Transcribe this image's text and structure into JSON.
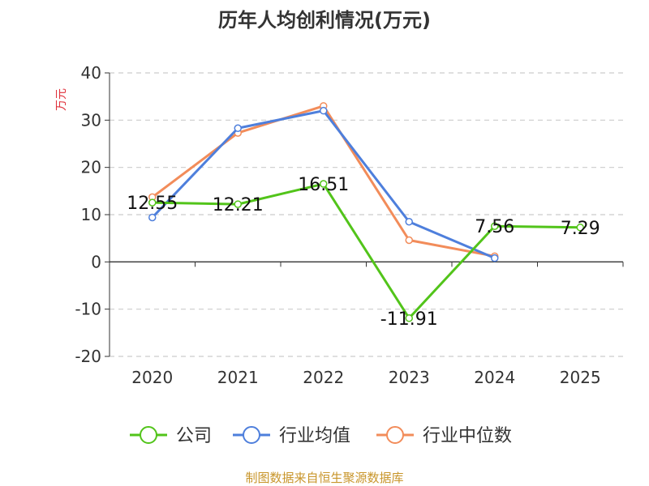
{
  "chart_data": {
    "type": "line",
    "title": "历年人均创利情况(万元)",
    "ylabel": "万元",
    "categories": [
      "2020",
      "2021",
      "2022",
      "2023",
      "2024",
      "2025"
    ],
    "ylim": [
      -20,
      40
    ],
    "yticks": [
      40,
      30,
      20,
      10,
      0,
      -10,
      -20
    ],
    "grid": true,
    "legend_position": "bottom",
    "series": [
      {
        "name": "公司",
        "color": "#52c41a",
        "values": [
          12.55,
          12.21,
          16.51,
          -11.91,
          7.56,
          7.29
        ],
        "data_labels": [
          "12.55",
          "12.21",
          "16.51",
          "-11.91",
          "7.56",
          "7.29"
        ]
      },
      {
        "name": "行业均值",
        "color": "#4e7fdc",
        "values": [
          9.4,
          28.3,
          32.0,
          8.5,
          0.8,
          null
        ]
      },
      {
        "name": "行业中位数",
        "color": "#f28c5a",
        "values": [
          13.7,
          27.3,
          33.0,
          4.6,
          1.2,
          null
        ]
      }
    ]
  },
  "source_note": "制图数据来自恒生聚源数据库"
}
